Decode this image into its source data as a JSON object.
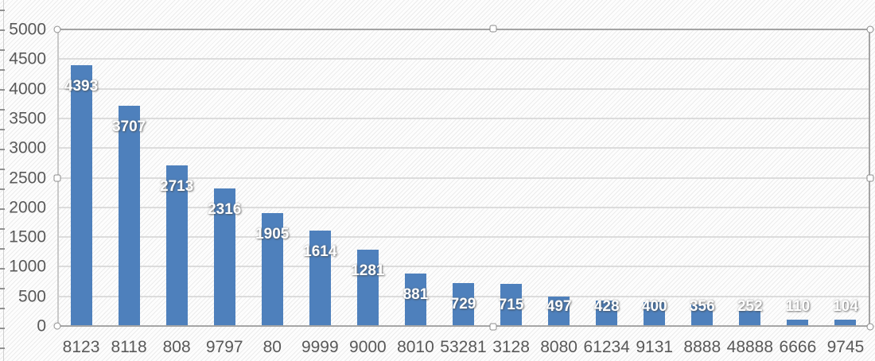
{
  "chart_data": {
    "type": "bar",
    "title": "",
    "xlabel": "",
    "ylabel": "",
    "categories": [
      "8123",
      "8118",
      "808",
      "9797",
      "80",
      "9999",
      "9000",
      "8010",
      "53281",
      "3128",
      "8080",
      "61234",
      "9131",
      "8888",
      "48888",
      "6666",
      "9745"
    ],
    "values": [
      4393,
      3707,
      2713,
      2316,
      1905,
      1614,
      1281,
      881,
      729,
      715,
      497,
      428,
      400,
      356,
      252,
      110,
      104
    ],
    "data_labels_visible": true,
    "data_label_position": "inside-end",
    "ylim": [
      0,
      5000
    ],
    "ytick_interval": 500,
    "ytick_labels": [
      "0",
      "500",
      "1000",
      "1500",
      "2000",
      "2500",
      "3000",
      "3500",
      "4000",
      "4500",
      "5000"
    ],
    "grid": true,
    "legend": "none",
    "colors": {
      "bar": "#4e80bc",
      "data_label_text": "#ffffff",
      "axis_text": "#595959",
      "gridline": "#dcdcdc",
      "axis_line": "#a6a6a6"
    }
  },
  "selection": {
    "selected_element": "plot-area",
    "handles": [
      "top-left",
      "top-center",
      "top-right",
      "middle-left",
      "middle-right",
      "bottom-left",
      "bottom-center",
      "bottom-right"
    ]
  }
}
